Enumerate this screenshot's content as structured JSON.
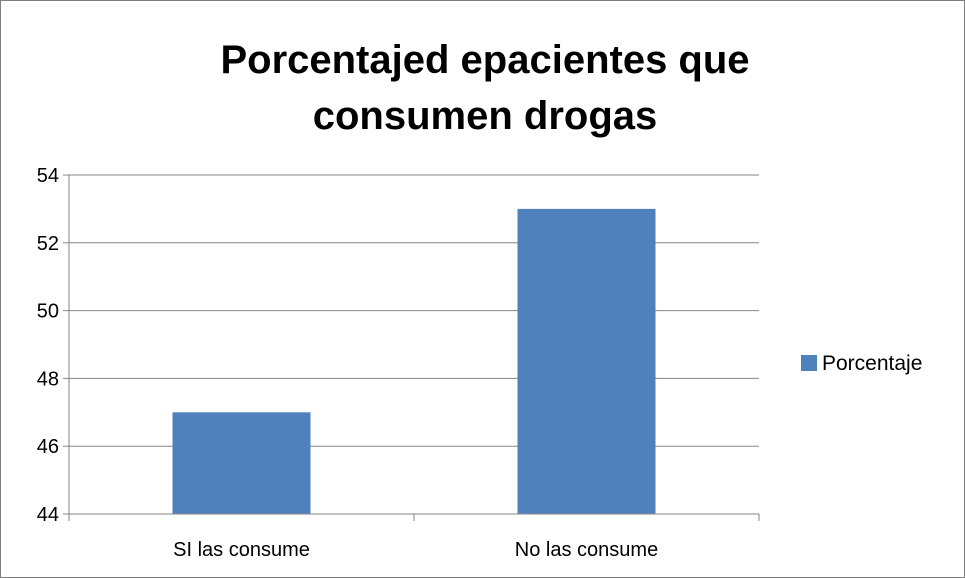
{
  "chart_data": {
    "type": "bar",
    "title_lines": [
      "Porcentajed epacientes  que",
      "consumen drogas"
    ],
    "categories": [
      "SI las consume",
      "No las consume"
    ],
    "series": [
      {
        "name": "Porcentaje",
        "values": [
          47,
          53
        ],
        "color": "#4f81bd"
      }
    ],
    "ylim": [
      44,
      54
    ],
    "yticks": [
      44,
      46,
      48,
      50,
      52,
      54
    ],
    "xlabel": "",
    "ylabel": "",
    "grid": true,
    "legend_position": "right",
    "colors": {
      "gridline": "#868686",
      "axis": "#868686",
      "bar": "#4f81bd"
    }
  }
}
